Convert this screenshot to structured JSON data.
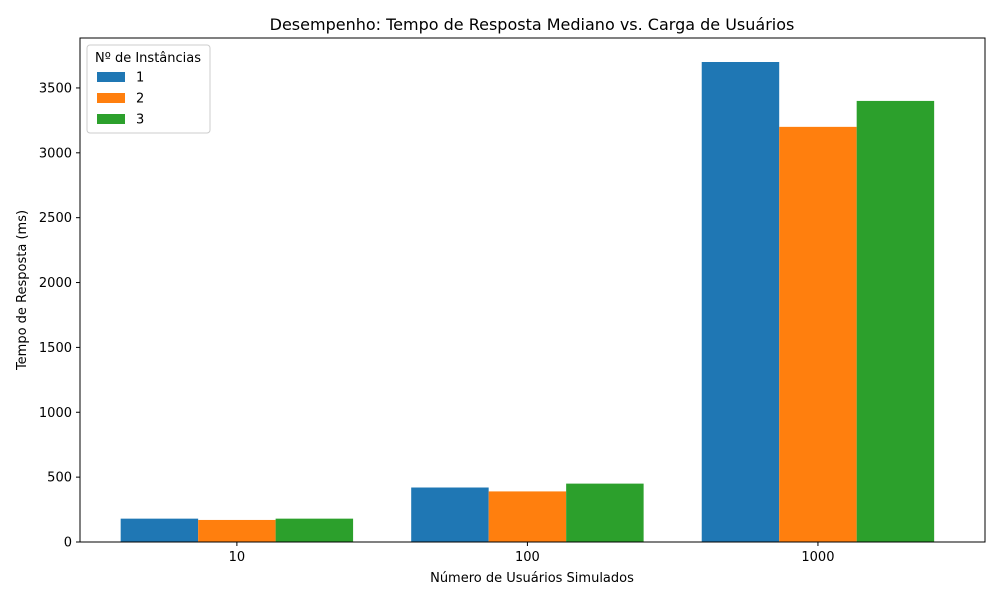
{
  "chart_data": {
    "type": "bar",
    "title": "Desempenho: Tempo de Resposta Mediano vs. Carga de Usuários",
    "xlabel": "Número de Usuários Simulados",
    "ylabel": "Tempo de Resposta (ms)",
    "categories": [
      "10",
      "100",
      "1000"
    ],
    "series": [
      {
        "name": "1",
        "color": "#1f77b4",
        "values": [
          180,
          420,
          3700
        ]
      },
      {
        "name": "2",
        "color": "#ff7f0e",
        "values": [
          170,
          390,
          3200
        ]
      },
      {
        "name": "3",
        "color": "#2ca02c",
        "values": [
          180,
          450,
          3400
        ]
      }
    ],
    "ylim": [
      0,
      3885
    ],
    "yticks": [
      0,
      500,
      1000,
      1500,
      2000,
      2500,
      3000,
      3500
    ],
    "legend": {
      "title": "Nº de Instâncias",
      "placement": "top-left"
    },
    "grid": false
  }
}
